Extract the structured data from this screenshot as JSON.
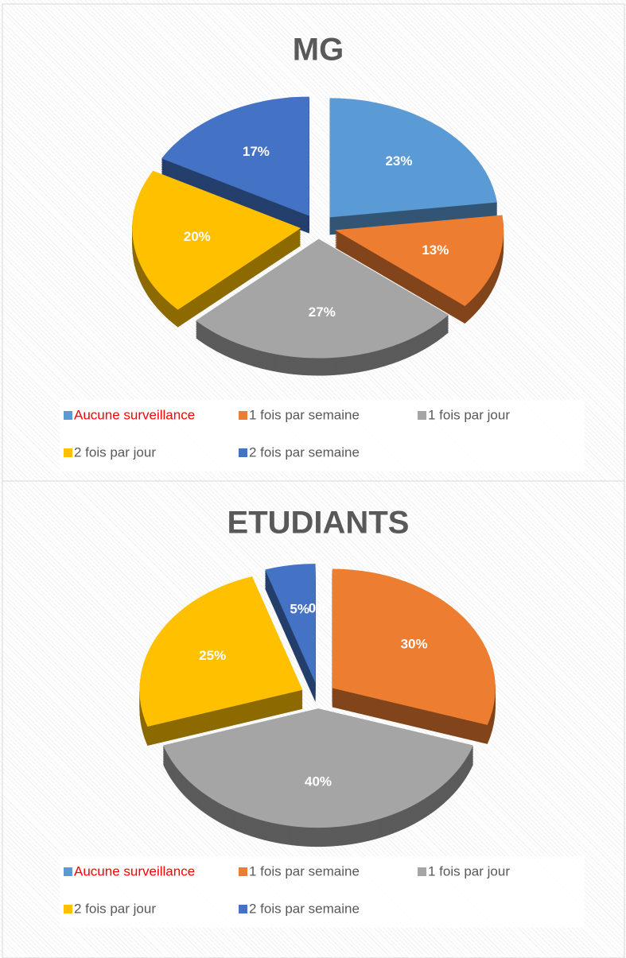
{
  "chart_data": [
    {
      "type": "pie",
      "title": "MG",
      "categories": [
        "Aucune surveillance",
        "1 fois par semaine",
        "1 fois par jour",
        "2 fois par jour",
        "2 fois par semaine"
      ],
      "values": [
        23,
        13,
        27,
        20,
        17
      ],
      "value_labels": [
        "23%",
        "13%",
        "27%",
        "20%",
        "17%"
      ],
      "colors": [
        "#5b9bd5",
        "#ed7d31",
        "#a5a5a5",
        "#ffc000",
        "#4472c4"
      ],
      "legend_text_colors": [
        "#ff0000",
        "#595959",
        "#595959",
        "#595959",
        "#595959"
      ],
      "legend": "bottom"
    },
    {
      "type": "pie",
      "title": "ETUDIANTS",
      "categories": [
        "Aucune surveillance",
        "1 fois par semaine",
        "1 fois par jour",
        "2 fois par jour",
        "2 fois par semaine"
      ],
      "values": [
        0,
        30,
        40,
        25,
        5
      ],
      "value_labels": [
        "0%",
        "30%",
        "40%",
        "25%",
        "5%"
      ],
      "colors": [
        "#5b9bd5",
        "#ed7d31",
        "#a5a5a5",
        "#ffc000",
        "#4472c4"
      ],
      "legend_text_colors": [
        "#ff0000",
        "#595959",
        "#595959",
        "#595959",
        "#595959"
      ],
      "legend": "bottom"
    }
  ]
}
